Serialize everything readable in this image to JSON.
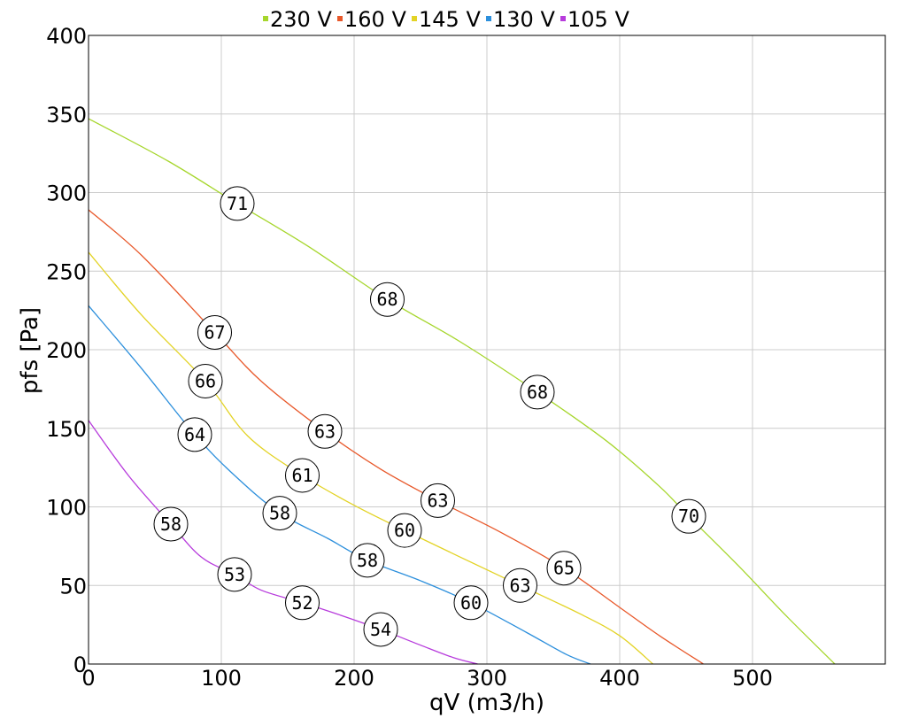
{
  "chart_data": {
    "type": "line",
    "xlabel": "qV (m3/h)",
    "ylabel": "pfs [Pa]",
    "xlim": [
      0,
      600
    ],
    "ylim": [
      0,
      400
    ],
    "xticks": [
      0,
      100,
      200,
      300,
      400,
      500
    ],
    "yticks": [
      0,
      50,
      100,
      150,
      200,
      250,
      300,
      350,
      400
    ],
    "grid": true,
    "legend_position": "top-center",
    "series": [
      {
        "name": "230 V",
        "color": "#a6d62c",
        "points": [
          [
            0,
            347
          ],
          [
            60,
            320
          ],
          [
            112,
            293
          ],
          [
            165,
            266
          ],
          [
            225,
            232
          ],
          [
            280,
            205
          ],
          [
            338,
            173
          ],
          [
            390,
            142
          ],
          [
            430,
            113
          ],
          [
            452,
            94
          ],
          [
            490,
            62
          ],
          [
            525,
            31
          ],
          [
            562,
            0
          ]
        ],
        "labels": [
          {
            "x": 112,
            "y": 293,
            "text": "71"
          },
          {
            "x": 225,
            "y": 232,
            "text": "68"
          },
          {
            "x": 338,
            "y": 173,
            "text": "68"
          },
          {
            "x": 452,
            "y": 94,
            "text": "70"
          }
        ]
      },
      {
        "name": "160 V",
        "color": "#e8582a",
        "points": [
          [
            0,
            289
          ],
          [
            40,
            260
          ],
          [
            95,
            211
          ],
          [
            130,
            180
          ],
          [
            178,
            148
          ],
          [
            220,
            124
          ],
          [
            263,
            104
          ],
          [
            310,
            84
          ],
          [
            358,
            61
          ],
          [
            400,
            36
          ],
          [
            430,
            18
          ],
          [
            463,
            0
          ]
        ],
        "labels": [
          {
            "x": 95,
            "y": 211,
            "text": "67"
          },
          {
            "x": 178,
            "y": 148,
            "text": "63"
          },
          {
            "x": 263,
            "y": 104,
            "text": "63"
          },
          {
            "x": 358,
            "y": 61,
            "text": "65"
          }
        ]
      },
      {
        "name": "145 V",
        "color": "#e3d325",
        "points": [
          [
            0,
            262
          ],
          [
            40,
            222
          ],
          [
            88,
            180
          ],
          [
            120,
            145
          ],
          [
            161,
            120
          ],
          [
            200,
            101
          ],
          [
            238,
            85
          ],
          [
            280,
            68
          ],
          [
            325,
            50
          ],
          [
            370,
            32
          ],
          [
            400,
            18
          ],
          [
            425,
            0
          ]
        ],
        "labels": [
          {
            "x": 88,
            "y": 180,
            "text": "66"
          },
          {
            "x": 161,
            "y": 120,
            "text": "61"
          },
          {
            "x": 238,
            "y": 85,
            "text": "60"
          },
          {
            "x": 325,
            "y": 50,
            "text": "63"
          }
        ]
      },
      {
        "name": "130 V",
        "color": "#2c8fdc",
        "points": [
          [
            0,
            228
          ],
          [
            40,
            188
          ],
          [
            80,
            146
          ],
          [
            110,
            120
          ],
          [
            144,
            96
          ],
          [
            180,
            80
          ],
          [
            210,
            66
          ],
          [
            250,
            53
          ],
          [
            288,
            39
          ],
          [
            330,
            20
          ],
          [
            360,
            6
          ],
          [
            378,
            0
          ]
        ],
        "labels": [
          {
            "x": 80,
            "y": 146,
            "text": "64"
          },
          {
            "x": 144,
            "y": 96,
            "text": "58"
          },
          {
            "x": 210,
            "y": 66,
            "text": "58"
          },
          {
            "x": 288,
            "y": 39,
            "text": "60"
          }
        ]
      },
      {
        "name": "105 V",
        "color": "#b73bdc",
        "points": [
          [
            0,
            155
          ],
          [
            30,
            120
          ],
          [
            62,
            89
          ],
          [
            85,
            68
          ],
          [
            110,
            57
          ],
          [
            130,
            47
          ],
          [
            161,
            39
          ],
          [
            190,
            31
          ],
          [
            220,
            22
          ],
          [
            250,
            12
          ],
          [
            275,
            4
          ],
          [
            293,
            0
          ]
        ],
        "labels": [
          {
            "x": 62,
            "y": 89,
            "text": "58"
          },
          {
            "x": 110,
            "y": 57,
            "text": "53"
          },
          {
            "x": 161,
            "y": 39,
            "text": "52"
          },
          {
            "x": 220,
            "y": 22,
            "text": "54"
          }
        ]
      }
    ]
  }
}
